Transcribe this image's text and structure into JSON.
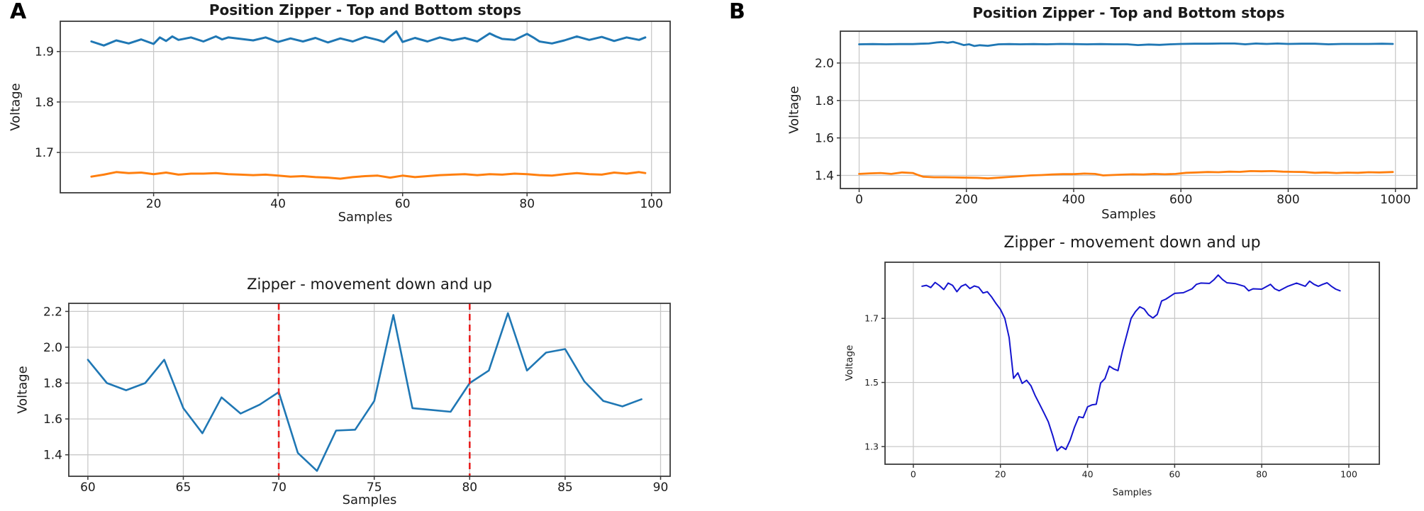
{
  "panels": {
    "a": {
      "label": "A"
    },
    "b": {
      "label": "B"
    }
  },
  "colors": {
    "series_blue": "#1f77b4",
    "series_orange": "#ff7f0e",
    "series_darkblue": "#1414cf",
    "vline_red": "#e82020",
    "grid": "#c9c9c9",
    "spine": "#3a3a3a"
  },
  "chart_data": [
    {
      "id": "a-top",
      "type": "line",
      "title": "Position Zipper - Top and Bottom stops",
      "xlabel": "Samples",
      "ylabel": "Voltage",
      "xlim": [
        5,
        103
      ],
      "ylim": [
        1.62,
        1.96
      ],
      "xticks": [
        20,
        40,
        60,
        80,
        100
      ],
      "xtick_labels": [
        "20",
        "40",
        "60",
        "80",
        "100"
      ],
      "yticks": [
        1.7,
        1.8,
        1.9
      ],
      "ytick_labels": [
        "1.7",
        "1.8",
        "1.9"
      ],
      "grid": true,
      "legend": null,
      "series": [
        {
          "name": "top-stop-blue",
          "color": "#1f77b4",
          "x": [
            10,
            12,
            14,
            16,
            18,
            20,
            21,
            22,
            23,
            24,
            26,
            28,
            30,
            31,
            32,
            34,
            36,
            38,
            40,
            42,
            44,
            46,
            48,
            50,
            52,
            54,
            56,
            57,
            58,
            59,
            60,
            62,
            64,
            66,
            68,
            70,
            72,
            74,
            75,
            76,
            78,
            80,
            81,
            82,
            84,
            86,
            88,
            90,
            92,
            94,
            96,
            98,
            99
          ],
          "y": [
            1.92,
            1.912,
            1.922,
            1.916,
            1.924,
            1.915,
            1.928,
            1.921,
            1.93,
            1.923,
            1.928,
            1.92,
            1.93,
            1.924,
            1.928,
            1.925,
            1.922,
            1.928,
            1.919,
            1.926,
            1.92,
            1.927,
            1.918,
            1.926,
            1.92,
            1.929,
            1.923,
            1.919,
            1.93,
            1.94,
            1.919,
            1.927,
            1.92,
            1.928,
            1.922,
            1.927,
            1.92,
            1.936,
            1.93,
            1.925,
            1.923,
            1.935,
            1.928,
            1.92,
            1.916,
            1.922,
            1.93,
            1.923,
            1.929,
            1.921,
            1.928,
            1.923,
            1.928
          ]
        },
        {
          "name": "bottom-stop-orange",
          "color": "#ff7f0e",
          "x": [
            10,
            12,
            14,
            16,
            18,
            20,
            22,
            24,
            26,
            28,
            30,
            32,
            34,
            36,
            38,
            40,
            42,
            44,
            46,
            48,
            50,
            52,
            54,
            56,
            58,
            60,
            62,
            64,
            66,
            68,
            70,
            72,
            74,
            76,
            78,
            80,
            82,
            84,
            86,
            88,
            90,
            92,
            94,
            96,
            98,
            99
          ],
          "y": [
            1.652,
            1.656,
            1.661,
            1.659,
            1.66,
            1.657,
            1.66,
            1.656,
            1.658,
            1.658,
            1.659,
            1.657,
            1.656,
            1.655,
            1.656,
            1.654,
            1.652,
            1.653,
            1.651,
            1.65,
            1.648,
            1.651,
            1.653,
            1.654,
            1.65,
            1.654,
            1.651,
            1.653,
            1.655,
            1.656,
            1.657,
            1.655,
            1.657,
            1.656,
            1.658,
            1.657,
            1.655,
            1.654,
            1.657,
            1.659,
            1.657,
            1.656,
            1.66,
            1.658,
            1.661,
            1.659
          ]
        }
      ]
    },
    {
      "id": "a-bottom",
      "type": "line",
      "title": "Zipper - movement down and up",
      "xlabel": "Samples",
      "ylabel": "Voltage",
      "xlim": [
        59,
        90.5
      ],
      "ylim": [
        1.28,
        2.245
      ],
      "xticks": [
        60,
        65,
        70,
        75,
        80,
        85,
        90
      ],
      "xtick_labels": [
        "60",
        "65",
        "70",
        "75",
        "80",
        "85",
        "90"
      ],
      "yticks": [
        1.4,
        1.6,
        1.8,
        2.0,
        2.2
      ],
      "ytick_labels": [
        "1.4",
        "1.6",
        "1.8",
        "2.0",
        "2.2"
      ],
      "grid": true,
      "legend": null,
      "vlines": [
        {
          "x": 70,
          "color": "#e82020",
          "style": "dashed"
        },
        {
          "x": 80,
          "color": "#e82020",
          "style": "dashed"
        }
      ],
      "series": [
        {
          "name": "movement-blue",
          "color": "#1f77b4",
          "x": [
            60,
            61,
            62,
            63,
            64,
            65,
            66,
            67,
            68,
            69,
            70,
            71,
            72,
            73,
            74,
            75,
            76,
            77,
            78,
            79,
            80,
            81,
            82,
            83,
            84,
            85,
            86,
            87,
            88,
            89
          ],
          "y": [
            1.93,
            1.8,
            1.76,
            1.8,
            1.93,
            1.66,
            1.52,
            1.72,
            1.63,
            1.68,
            1.75,
            1.41,
            1.31,
            1.535,
            1.54,
            1.7,
            2.18,
            1.66,
            1.65,
            1.64,
            1.8,
            1.87,
            2.19,
            1.87,
            1.97,
            1.99,
            1.81,
            1.7,
            1.67,
            1.71
          ]
        }
      ]
    },
    {
      "id": "b-top",
      "type": "line",
      "title": "Position Zipper - Top and Bottom stops",
      "xlabel": "Samples",
      "ylabel": "Voltage",
      "xlim": [
        -35,
        1040
      ],
      "ylim": [
        1.33,
        2.17
      ],
      "xticks": [
        0,
        200,
        400,
        600,
        800,
        1000
      ],
      "xtick_labels": [
        "0",
        "200",
        "400",
        "600",
        "800",
        "1000"
      ],
      "yticks": [
        1.4,
        1.6,
        1.8,
        2.0
      ],
      "ytick_labels": [
        "1.4",
        "1.6",
        "1.8",
        "2.0"
      ],
      "grid": true,
      "legend": null,
      "series": [
        {
          "name": "top-stop-blue",
          "color": "#1f77b4",
          "x": [
            0,
            25,
            50,
            75,
            100,
            115,
            130,
            145,
            155,
            165,
            175,
            185,
            195,
            205,
            215,
            225,
            240,
            260,
            280,
            300,
            325,
            350,
            375,
            400,
            425,
            450,
            475,
            500,
            520,
            540,
            560,
            580,
            600,
            625,
            650,
            675,
            700,
            720,
            740,
            760,
            780,
            800,
            825,
            850,
            875,
            900,
            925,
            950,
            975,
            995
          ],
          "y": [
            2.1,
            2.101,
            2.1,
            2.101,
            2.101,
            2.103,
            2.104,
            2.11,
            2.112,
            2.108,
            2.113,
            2.105,
            2.096,
            2.1,
            2.091,
            2.095,
            2.092,
            2.1,
            2.101,
            2.1,
            2.101,
            2.1,
            2.102,
            2.101,
            2.1,
            2.101,
            2.1,
            2.1,
            2.096,
            2.099,
            2.097,
            2.1,
            2.102,
            2.103,
            2.103,
            2.104,
            2.104,
            2.1,
            2.104,
            2.102,
            2.104,
            2.102,
            2.103,
            2.103,
            2.1,
            2.102,
            2.102,
            2.102,
            2.103,
            2.102
          ]
        },
        {
          "name": "bottom-stop-orange",
          "color": "#ff7f0e",
          "x": [
            0,
            20,
            40,
            60,
            80,
            100,
            110,
            120,
            140,
            160,
            180,
            200,
            220,
            240,
            260,
            280,
            300,
            320,
            340,
            360,
            380,
            400,
            420,
            440,
            455,
            470,
            490,
            510,
            530,
            550,
            570,
            590,
            610,
            630,
            650,
            670,
            690,
            710,
            730,
            750,
            770,
            790,
            810,
            830,
            850,
            870,
            890,
            910,
            930,
            950,
            970,
            995
          ],
          "y": [
            1.408,
            1.411,
            1.413,
            1.408,
            1.416,
            1.413,
            1.402,
            1.393,
            1.39,
            1.39,
            1.389,
            1.388,
            1.387,
            1.384,
            1.388,
            1.392,
            1.396,
            1.4,
            1.402,
            1.405,
            1.407,
            1.407,
            1.41,
            1.408,
            1.4,
            1.402,
            1.404,
            1.406,
            1.405,
            1.408,
            1.406,
            1.408,
            1.414,
            1.416,
            1.418,
            1.417,
            1.42,
            1.419,
            1.423,
            1.422,
            1.423,
            1.42,
            1.419,
            1.418,
            1.414,
            1.416,
            1.413,
            1.415,
            1.414,
            1.417,
            1.416,
            1.418
          ]
        }
      ]
    },
    {
      "id": "b-bottom",
      "type": "line",
      "title": "Zipper - movement down and up",
      "xlabel": "Samples",
      "ylabel": "Voltage",
      "xlim": [
        -6.5,
        107
      ],
      "ylim": [
        1.245,
        1.875
      ],
      "xticks": [
        0,
        20,
        40,
        60,
        80,
        100
      ],
      "xtick_labels": [
        "0",
        "20",
        "40",
        "60",
        "80",
        "100"
      ],
      "yticks": [
        1.3,
        1.5,
        1.7
      ],
      "ytick_labels": [
        "1.3",
        "1.5",
        "1.7"
      ],
      "grid": true,
      "legend": null,
      "series": [
        {
          "name": "movement-darkblue",
          "color": "#1414cf",
          "x": [
            2,
            3,
            4,
            5,
            6,
            7,
            8,
            9,
            10,
            11,
            12,
            13,
            14,
            15,
            16,
            17,
            18,
            19,
            20,
            21,
            22,
            23,
            24,
            25,
            26,
            27,
            28,
            29,
            30,
            31,
            32,
            33,
            34,
            35,
            36,
            37,
            38,
            39,
            40,
            41,
            42,
            43,
            44,
            45,
            46,
            47,
            48,
            49,
            50,
            51,
            52,
            53,
            54,
            55,
            56,
            57,
            58,
            60,
            62,
            64,
            65,
            66,
            68,
            69,
            70,
            71,
            72,
            74,
            76,
            77,
            78,
            80,
            82,
            83,
            84,
            86,
            88,
            90,
            91,
            92,
            93,
            94,
            95,
            96,
            97,
            98
          ],
          "y": [
            1.8,
            1.803,
            1.796,
            1.812,
            1.802,
            1.79,
            1.81,
            1.803,
            1.783,
            1.8,
            1.806,
            1.793,
            1.801,
            1.797,
            1.779,
            1.783,
            1.766,
            1.746,
            1.728,
            1.7,
            1.64,
            1.513,
            1.53,
            1.497,
            1.507,
            1.49,
            1.458,
            1.432,
            1.405,
            1.377,
            1.335,
            1.287,
            1.3,
            1.291,
            1.32,
            1.36,
            1.393,
            1.39,
            1.424,
            1.43,
            1.432,
            1.498,
            1.512,
            1.551,
            1.542,
            1.537,
            1.597,
            1.648,
            1.7,
            1.721,
            1.736,
            1.729,
            1.711,
            1.701,
            1.712,
            1.754,
            1.76,
            1.778,
            1.78,
            1.792,
            1.806,
            1.81,
            1.809,
            1.82,
            1.835,
            1.821,
            1.811,
            1.808,
            1.8,
            1.786,
            1.792,
            1.791,
            1.806,
            1.792,
            1.786,
            1.8,
            1.81,
            1.8,
            1.816,
            1.806,
            1.8,
            1.806,
            1.811,
            1.8,
            1.791,
            1.786
          ]
        }
      ]
    }
  ]
}
